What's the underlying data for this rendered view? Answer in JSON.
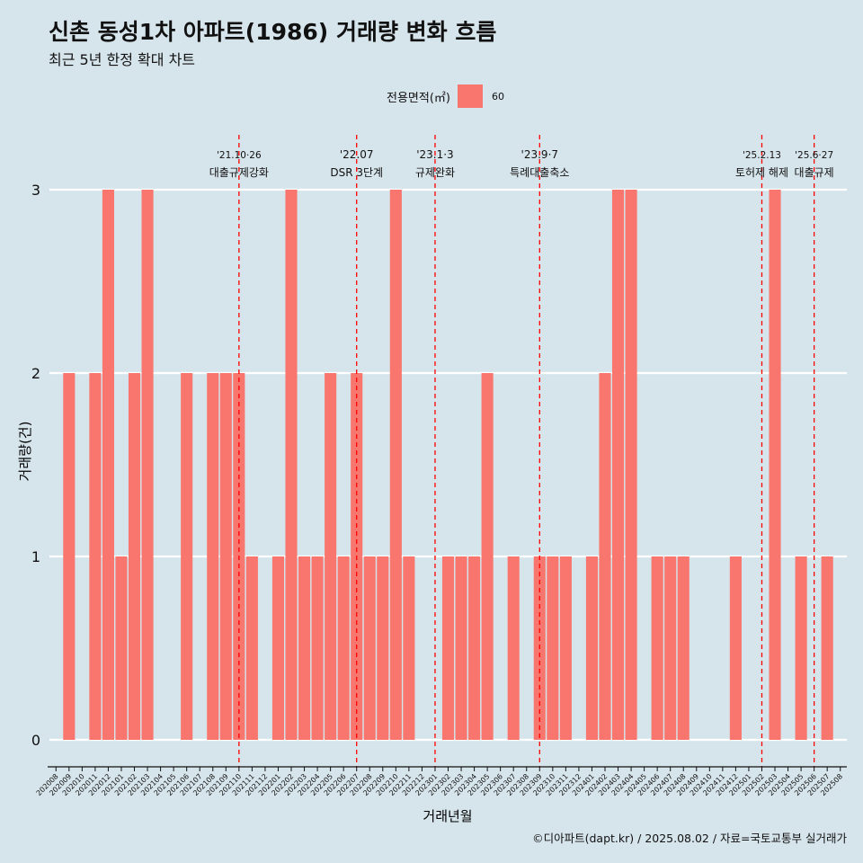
{
  "title": "신촌 동성1차 아파트(1986) 거래량 변화 흐름",
  "subtitle": "최근 5년 한정 확대 차트",
  "legend": {
    "title": "전용면적(㎡)",
    "label": "60"
  },
  "caption": "©디아파트(dapt.kr) / 2025.08.02 / 자료=국토교통부 실거래가",
  "colors": {
    "bar": "#f8766d",
    "background": "#d6e4eb",
    "grid": "#ffffff",
    "annotation": "#ff0000"
  },
  "chart_data": {
    "type": "bar",
    "xlabel": "거래년월",
    "ylabel": "거래량(건)",
    "ylim": [
      0,
      3
    ],
    "yticks": [
      0,
      1,
      2,
      3
    ],
    "grid": true,
    "legend_position": "top",
    "categories": [
      "202008",
      "202009",
      "202010",
      "202011",
      "202012",
      "202101",
      "202102",
      "202103",
      "202104",
      "202105",
      "202106",
      "202107",
      "202108",
      "202109",
      "202110",
      "202111",
      "202112",
      "202201",
      "202202",
      "202203",
      "202204",
      "202205",
      "202206",
      "202207",
      "202208",
      "202209",
      "202210",
      "202211",
      "202212",
      "202301",
      "202302",
      "202303",
      "202304",
      "202305",
      "202306",
      "202307",
      "202308",
      "202309",
      "202310",
      "202311",
      "202312",
      "202401",
      "202402",
      "202403",
      "202404",
      "202405",
      "202406",
      "202407",
      "202408",
      "202409",
      "202410",
      "202411",
      "202412",
      "202501",
      "202502",
      "202503",
      "202504",
      "202505",
      "202506",
      "202507",
      "202508"
    ],
    "series": [
      {
        "name": "60",
        "values": [
          0,
          2,
          0,
          2,
          3,
          1,
          2,
          3,
          0,
          0,
          2,
          0,
          2,
          2,
          2,
          1,
          0,
          1,
          3,
          1,
          1,
          2,
          1,
          2,
          1,
          1,
          3,
          1,
          0,
          0,
          1,
          1,
          1,
          2,
          0,
          1,
          0,
          1,
          1,
          1,
          0,
          1,
          2,
          3,
          3,
          0,
          1,
          1,
          1,
          0,
          0,
          0,
          1,
          0,
          0,
          3,
          0,
          1,
          0,
          1,
          0
        ]
      }
    ],
    "annotations": [
      {
        "position": "202110",
        "date": "'21.10·26",
        "label": "대출규제강화"
      },
      {
        "position": "202207",
        "date": "'22.07",
        "label": "DSR 3단계"
      },
      {
        "position": "202301",
        "date": "'23.1·3",
        "label": "규제완화"
      },
      {
        "position": "202309",
        "date": "'23.9·7",
        "label": "특례대출축소"
      },
      {
        "position": "202502",
        "date": "'25.2.13",
        "label": "토허제 해제"
      },
      {
        "position": "202506",
        "date": "'25.6·27",
        "label": "대출규제"
      }
    ]
  }
}
